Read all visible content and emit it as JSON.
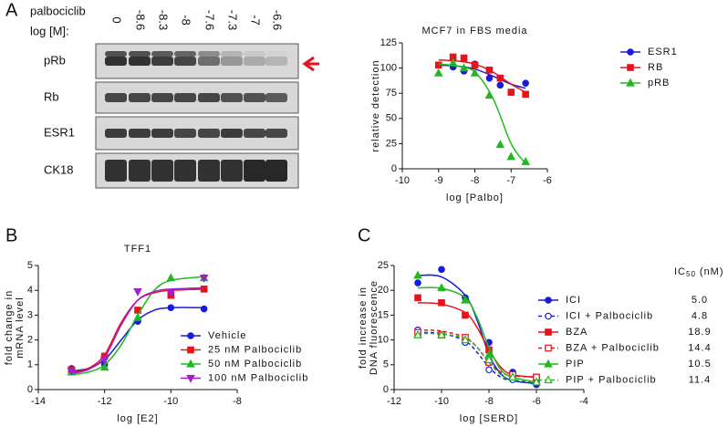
{
  "panels": [
    "A",
    "B",
    "C"
  ],
  "blot": {
    "header": [
      "palbociclib",
      "log [M]:"
    ],
    "lanes": [
      "0",
      "-8.6",
      "-8.3",
      "-8",
      "-7.6",
      "-7.3",
      "-7",
      "-6.6"
    ],
    "rows": [
      "pRb",
      "Rb",
      "ESR1",
      "CK18"
    ]
  },
  "chart_data": [
    {
      "type": "line",
      "title": "MCF7 in FBS media",
      "xlabel": "log [Palbo]",
      "ylabel": [
        "relative detection"
      ],
      "xlim": [
        -10,
        -6
      ],
      "xticks": [
        -10,
        -9,
        -8,
        -7,
        -6
      ],
      "ylim": [
        0,
        125
      ],
      "yticks": [
        0,
        25,
        50,
        75,
        100,
        125
      ],
      "x": [
        -9,
        -8.6,
        -8.3,
        -8,
        -7.6,
        -7.3,
        -7,
        -6.6
      ],
      "fit_x": [
        -9,
        -8.5,
        -8,
        -7.5,
        -7,
        -6.6
      ],
      "series": [
        {
          "name": "ESR1",
          "color": "#1a1adb",
          "marker": "circle",
          "values": [
            103,
            101,
            97,
            104,
            90,
            83,
            76,
            85
          ],
          "fit": [
            103,
            102,
            99,
            92,
            84,
            80
          ]
        },
        {
          "name": "RB",
          "color": "#e8121b",
          "marker": "square",
          "values": [
            103,
            111,
            110,
            103,
            98,
            90,
            76,
            74
          ],
          "fit": [
            108,
            107,
            104,
            96,
            84,
            76
          ]
        },
        {
          "name": "pRB",
          "color": "#21b821",
          "marker": "triangle",
          "values": [
            95,
            105,
            100,
            95,
            73,
            24,
            12,
            7
          ],
          "fit": [
            104,
            102,
            96,
            70,
            25,
            5
          ]
        }
      ]
    },
    {
      "type": "line",
      "title": "TFF1",
      "xlabel": "log [E2]",
      "ylabel": [
        "fold change in",
        "mRNA level"
      ],
      "xlim": [
        -14,
        -8
      ],
      "xticks": [
        -14,
        -12,
        -10,
        -8
      ],
      "ylim": [
        0,
        5
      ],
      "yticks": [
        0,
        1,
        2,
        3,
        4,
        5
      ],
      "x": [
        -13,
        -12,
        -11,
        -10,
        -9
      ],
      "fit_x": [
        -13,
        -12.5,
        -12,
        -11.5,
        -11,
        -10.5,
        -10,
        -9
      ],
      "series": [
        {
          "name": "Vehicle",
          "color": "#1a1adb",
          "marker": "circle",
          "values": [
            0.85,
            1.0,
            2.75,
            3.3,
            3.25
          ],
          "fit": [
            0.75,
            0.85,
            1.2,
            2.0,
            2.8,
            3.2,
            3.3,
            3.3
          ]
        },
        {
          "name": "25 nM Palbociclib",
          "color": "#e8121b",
          "marker": "square",
          "values": [
            0.8,
            1.35,
            3.2,
            3.8,
            4.05
          ],
          "fit": [
            0.7,
            0.85,
            1.4,
            2.7,
            3.6,
            3.9,
            4.0,
            4.05
          ]
        },
        {
          "name": "50 nM Palbociclib",
          "color": "#21b821",
          "marker": "triangle",
          "values": [
            0.7,
            0.9,
            2.9,
            4.5,
            4.5
          ],
          "fit": [
            0.6,
            0.7,
            1.0,
            1.8,
            3.0,
            4.0,
            4.4,
            4.55
          ]
        },
        {
          "name": "100 nM Palbociclib",
          "color": "#a020d0",
          "marker": "triangle-down",
          "values": [
            0.75,
            1.2,
            3.95,
            3.9,
            4.5
          ],
          "fit": [
            0.65,
            0.8,
            1.3,
            2.6,
            3.6,
            3.95,
            4.05,
            4.1
          ]
        }
      ]
    },
    {
      "type": "line",
      "xlabel": "log [SERD]",
      "ylabel": [
        "fold increase in",
        "DNA fluorescence"
      ],
      "xlim": [
        -12,
        -4
      ],
      "xticks": [
        -12,
        -10,
        -8,
        -6,
        -4
      ],
      "ylim": [
        0,
        25
      ],
      "yticks": [
        0,
        5,
        10,
        15,
        20,
        25
      ],
      "ic50_header": {
        "text": "IC",
        "sub": "50",
        "unit": "(nM)"
      },
      "x": [
        -11,
        -10,
        -9,
        -8,
        -7,
        -6
      ],
      "fit_x": [
        -11,
        -10,
        -9,
        -8.5,
        -8,
        -7.5,
        -7,
        -6
      ],
      "series": [
        {
          "name": "ICI",
          "color": "#1a1adb",
          "marker": "circle",
          "values": [
            21.5,
            24.2,
            18.5,
            9.5,
            3.5,
            1.0
          ],
          "fit": [
            23,
            22.7,
            19,
            14,
            7,
            3.2,
            1.8,
            1.2
          ],
          "ic50": "5.0"
        },
        {
          "name": "ICI + Palbociclib",
          "color": "#1a1adb",
          "marker": "circle",
          "open": true,
          "dashed": true,
          "values": [
            12,
            11,
            9.5,
            4,
            2,
            1.5
          ],
          "fit": [
            11.5,
            11.3,
            9.8,
            7.5,
            4.5,
            2.5,
            1.8,
            1.5
          ],
          "ic50": "4.8"
        },
        {
          "name": "BZA",
          "color": "#e8121b",
          "marker": "square",
          "values": [
            18.5,
            17.5,
            15,
            8,
            3,
            2.5
          ],
          "fit": [
            17.5,
            17.2,
            15.5,
            12.5,
            8,
            4.5,
            3,
            2.5
          ],
          "ic50": "18.9"
        },
        {
          "name": "BZA + Palbociclib",
          "color": "#e8121b",
          "marker": "square",
          "open": true,
          "dashed": true,
          "values": [
            11.5,
            11,
            10.5,
            5.5,
            3,
            2.5
          ],
          "fit": [
            12,
            11.8,
            10.5,
            8.5,
            5.5,
            3.5,
            2.8,
            2.5
          ],
          "ic50": "14.4"
        },
        {
          "name": "PIP",
          "color": "#21b821",
          "marker": "triangle",
          "values": [
            23,
            20.5,
            18,
            7,
            2.5,
            1.5
          ],
          "fit": [
            20.5,
            20.4,
            18.5,
            14.5,
            8.5,
            4,
            2.5,
            1.5
          ],
          "ic50": "10.5"
        },
        {
          "name": "PIP + Palbociclib",
          "color": "#21b821",
          "marker": "triangle",
          "open": true,
          "dashed": true,
          "values": [
            11,
            11,
            10,
            6,
            2.5,
            1.5
          ],
          "fit": [
            11.3,
            11.2,
            10.3,
            8.5,
            5.5,
            3,
            2,
            1.5
          ],
          "ic50": "11.4"
        }
      ]
    }
  ]
}
